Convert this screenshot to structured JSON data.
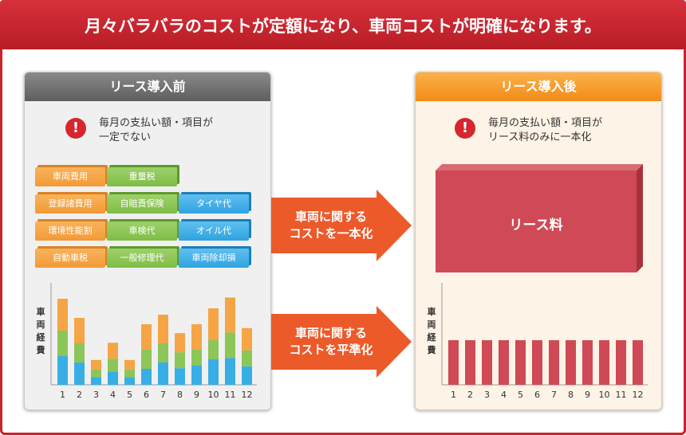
{
  "header": {
    "title": "月々バラバラのコストが定額になり、車両コストが明確になります。"
  },
  "before": {
    "title": "リース導入前",
    "warning_icon": "!",
    "note": "毎月の支払い額・項目が\n一定でない",
    "rows": [
      [
        {
          "label": "車両費用",
          "color": "o"
        },
        {
          "label": "重量税",
          "color": "g"
        }
      ],
      [
        {
          "label": "登録諸費用",
          "color": "o"
        },
        {
          "label": "自賠責保険",
          "color": "g"
        },
        {
          "label": "タイヤ代",
          "color": "b"
        }
      ],
      [
        {
          "label": "環境性能割",
          "color": "o"
        },
        {
          "label": "車検代",
          "color": "g"
        },
        {
          "label": "オイル代",
          "color": "b"
        }
      ],
      [
        {
          "label": "自動車税",
          "color": "o"
        },
        {
          "label": "一般修理代",
          "color": "g"
        },
        {
          "label": "車両除却損",
          "color": "b"
        }
      ]
    ],
    "ylabel": "車\n両\n経\n費"
  },
  "after": {
    "title": "リース導入後",
    "warning_icon": "!",
    "note": "毎月の支払い額・項目が\nリース料のみに一本化",
    "lease_label": "リース料",
    "ylabel": "車\n両\n経\n費"
  },
  "arrows": [
    {
      "label": "車両に関する\nコストを一本化"
    },
    {
      "label": "車両に関する\nコストを平準化"
    }
  ],
  "colors": {
    "orange": "#f5a545",
    "green": "#8cc558",
    "blue": "#38aee6",
    "red": "#cf4a56",
    "accent": "#c8242c"
  },
  "chart_data": [
    {
      "type": "bar",
      "categories": [
        "1",
        "2",
        "3",
        "4",
        "5",
        "6",
        "7",
        "8",
        "9",
        "10",
        "11",
        "12"
      ],
      "series": [
        {
          "name": "",
          "values": [
            5,
            4,
            1.5,
            2.5,
            1.5,
            4,
            4.5,
            3,
            4,
            5,
            5.5,
            3.5
          ]
        },
        {
          "name": "",
          "values": [
            4,
            3,
            1.2,
            2,
            1.2,
            3,
            3,
            2.5,
            2.5,
            3,
            4,
            2.5
          ]
        },
        {
          "name": "",
          "values": [
            4.5,
            3.5,
            1.2,
            2.1,
            1.2,
            2.5,
            3.5,
            2.6,
            3,
            4,
            4.2,
            2.9
          ]
        }
      ],
      "stacked": true,
      "ylabel": "車両経費"
    },
    {
      "type": "bar",
      "categories": [
        "1",
        "2",
        "3",
        "4",
        "5",
        "6",
        "7",
        "8",
        "9",
        "10",
        "11",
        "12"
      ],
      "values": [
        1,
        1,
        1,
        1,
        1,
        1,
        1,
        1,
        1,
        1,
        1,
        1
      ],
      "ylabel": "車両経費"
    }
  ]
}
